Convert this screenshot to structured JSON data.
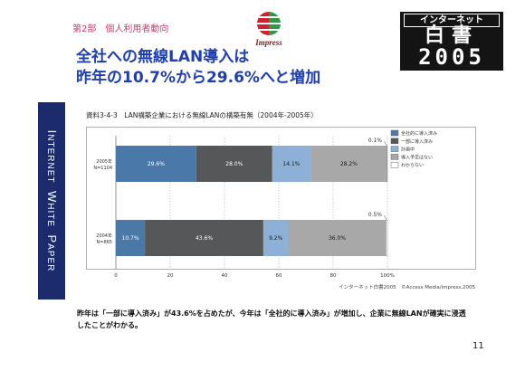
{
  "header": {
    "section_label": "第2部　個人利用者動向",
    "impress_logo_text": "Impress",
    "brand_logo": {
      "line1": "インターネット",
      "line2": "白書",
      "line3": "2005"
    }
  },
  "title": {
    "line1": "全社への無線LAN導入は",
    "line2": "昨年の10.7%から29.6%へと増加"
  },
  "side_band": {
    "words": [
      "INTERNET",
      "WHITE",
      "PAPER"
    ]
  },
  "chart_data": {
    "type": "bar",
    "orientation": "horizontal",
    "stacked": true,
    "title": "資料3-4-3　LAN構築企業における無線LANの構築有無（2004年-2005年）",
    "categories": [
      "2005年",
      "2004年"
    ],
    "category_notes": [
      "N=1104",
      "N=865"
    ],
    "series": [
      {
        "name": "全社的に導入済み",
        "values": [
          29.6,
          10.7
        ],
        "color": "#4a78a8"
      },
      {
        "name": "一部に導入済み",
        "values": [
          28.0,
          43.6
        ],
        "color": "#565759"
      },
      {
        "name": "計画中",
        "values": [
          14.1,
          9.2
        ],
        "color": "#8db1d6"
      },
      {
        "name": "導入予定はない",
        "values": [
          28.2,
          36.0
        ],
        "color": "#a8a8a8"
      },
      {
        "name": "わからない",
        "values": [
          0.1,
          0.5
        ],
        "color": "#ffffff"
      }
    ],
    "x_ticks": [
      "0",
      "20",
      "40",
      "60",
      "80",
      "100%"
    ],
    "xlim": [
      0,
      100
    ],
    "grid": true,
    "legend_position": "right"
  },
  "source": "インターネット白書2005　©Access Media/impress,2005",
  "summary": "昨年は「一部に導入済み」が43.6%を占めたが、今年は「全社的に導入済み」が増加し、企業に無線LANが確実に浸透したことがわかる。",
  "page_number": "11"
}
